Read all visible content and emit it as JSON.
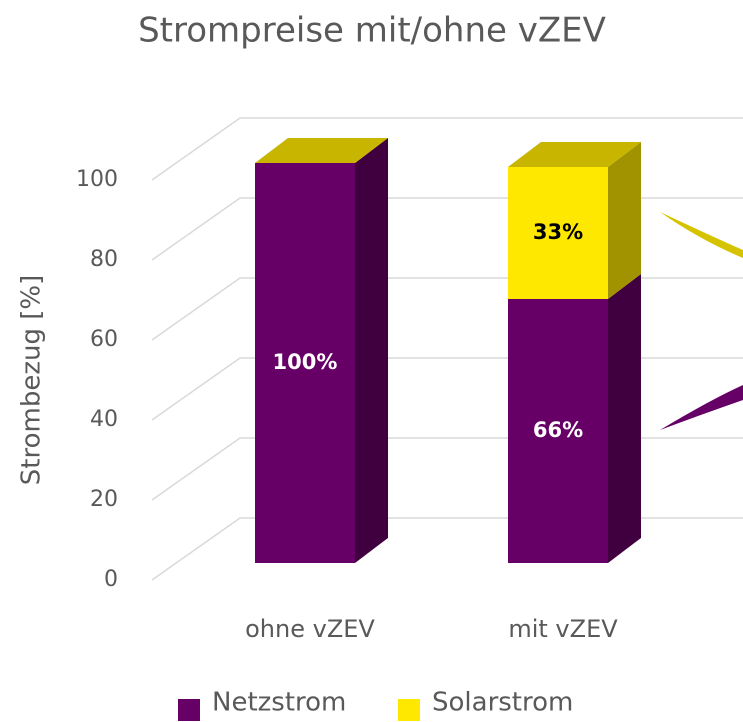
{
  "chart_data": {
    "type": "bar3d_stacked",
    "title": "Strompreise mit/ohne vZEV",
    "y_label": "Strombezug [%]",
    "categories": [
      "ohne vZEV",
      "mit vZEV"
    ],
    "series": [
      {
        "name": "Netzstrom",
        "color": "#660066",
        "values": [
          100,
          66
        ],
        "value_labels": [
          "100%",
          "66%"
        ]
      },
      {
        "name": "Solarstrom",
        "color": "#ffe800",
        "values": [
          0,
          33
        ],
        "value_labels": [
          null,
          "33%"
        ]
      }
    ],
    "ylim": [
      0,
      100
    ],
    "yticks": [
      0,
      20,
      40,
      60,
      80,
      100
    ],
    "grid": true,
    "legend": "bottom"
  }
}
